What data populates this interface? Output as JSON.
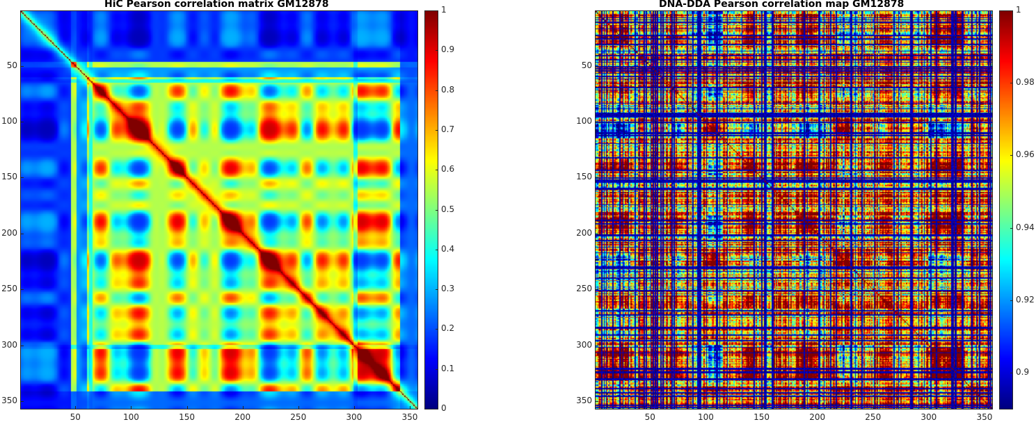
{
  "chart_data": [
    {
      "type": "heatmap",
      "title": "HiC Pearson correlation matrix GM12878",
      "matrix_size": 357,
      "xticks": [
        50,
        100,
        150,
        200,
        250,
        300,
        350
      ],
      "yticks": [
        50,
        100,
        150,
        200,
        250,
        300,
        350
      ],
      "colormap": "jet",
      "clim": [
        0,
        1
      ],
      "colorbar_ticks": [
        0,
        0.1,
        0.2,
        0.3,
        0.4,
        0.5,
        0.6,
        0.7,
        0.8,
        0.9,
        1
      ],
      "colorbar_labels": [
        "0",
        "0.1",
        "0.2",
        "0.3",
        "0.4",
        "0.5",
        "0.6",
        "0.7",
        "0.8",
        "0.9",
        "1"
      ],
      "diagonal_value": 1
    },
    {
      "type": "heatmap",
      "title": "DNA-DDA Pearson correlation map GM12878",
      "matrix_size": 357,
      "xticks": [
        50,
        100,
        150,
        200,
        250,
        300,
        350
      ],
      "yticks": [
        50,
        100,
        150,
        200,
        250,
        300,
        350
      ],
      "colormap": "jet",
      "clim": [
        0.89,
        1
      ],
      "colorbar_ticks": [
        0.9,
        0.92,
        0.94,
        0.96,
        0.98,
        1
      ],
      "colorbar_labels": [
        "0.9",
        "0.92",
        "0.94",
        "0.96",
        "0.98",
        "1"
      ],
      "diagonal_value": 1
    }
  ]
}
